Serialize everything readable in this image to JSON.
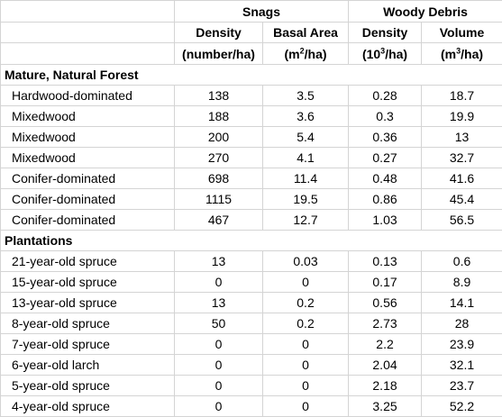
{
  "header": {
    "group_snags": "Snags",
    "group_woody_debris": "Woody Debris",
    "columns": [
      {
        "label": "Density",
        "unit_pre": "(number/ha)",
        "unit_sup": "",
        "unit_post": ""
      },
      {
        "label": "Basal Area",
        "unit_pre": "(m",
        "unit_sup": "2",
        "unit_post": "/ha)"
      },
      {
        "label": "Density",
        "unit_pre": "(10",
        "unit_sup": "3",
        "unit_post": "/ha)"
      },
      {
        "label": "Volume",
        "unit_pre": "(m",
        "unit_sup": "3",
        "unit_post": "/ha)"
      }
    ]
  },
  "sections": [
    {
      "title": "Mature, Natural Forest",
      "rows": [
        {
          "name": "Hardwood-dominated",
          "values": [
            "138",
            "3.5",
            "0.28",
            "18.7"
          ]
        },
        {
          "name": "Mixedwood",
          "values": [
            "188",
            "3.6",
            "0.3",
            "19.9"
          ]
        },
        {
          "name": "Mixedwood",
          "values": [
            "200",
            "5.4",
            "0.36",
            "13"
          ]
        },
        {
          "name": "Mixedwood",
          "values": [
            "270",
            "4.1",
            "0.27",
            "32.7"
          ]
        },
        {
          "name": "Conifer-dominated",
          "values": [
            "698",
            "11.4",
            "0.48",
            "41.6"
          ]
        },
        {
          "name": "Conifer-dominated",
          "values": [
            "1115",
            "19.5",
            "0.86",
            "45.4"
          ]
        },
        {
          "name": "Conifer-dominated",
          "values": [
            "467",
            "12.7",
            "1.03",
            "56.5"
          ]
        }
      ]
    },
    {
      "title": "Plantations",
      "rows": [
        {
          "name": "21-year-old spruce",
          "values": [
            "13",
            "0.03",
            "0.13",
            "0.6"
          ]
        },
        {
          "name": "15-year-old spruce",
          "values": [
            "0",
            "0",
            "0.17",
            "8.9"
          ]
        },
        {
          "name": "13-year-old spruce",
          "values": [
            "13",
            "0.2",
            "0.56",
            "14.1"
          ]
        },
        {
          "name": "8-year-old spruce",
          "values": [
            "50",
            "0.2",
            "2.73",
            "28"
          ]
        },
        {
          "name": "7-year-old spruce",
          "values": [
            "0",
            "0",
            "2.2",
            "23.9"
          ]
        },
        {
          "name": "6-year-old larch",
          "values": [
            "0",
            "0",
            "2.04",
            "32.1"
          ]
        },
        {
          "name": "5-year-old spruce",
          "values": [
            "0",
            "0",
            "2.18",
            "23.7"
          ]
        },
        {
          "name": "4-year-old spruce",
          "values": [
            "0",
            "0",
            "3.25",
            "52.2"
          ]
        }
      ]
    }
  ]
}
